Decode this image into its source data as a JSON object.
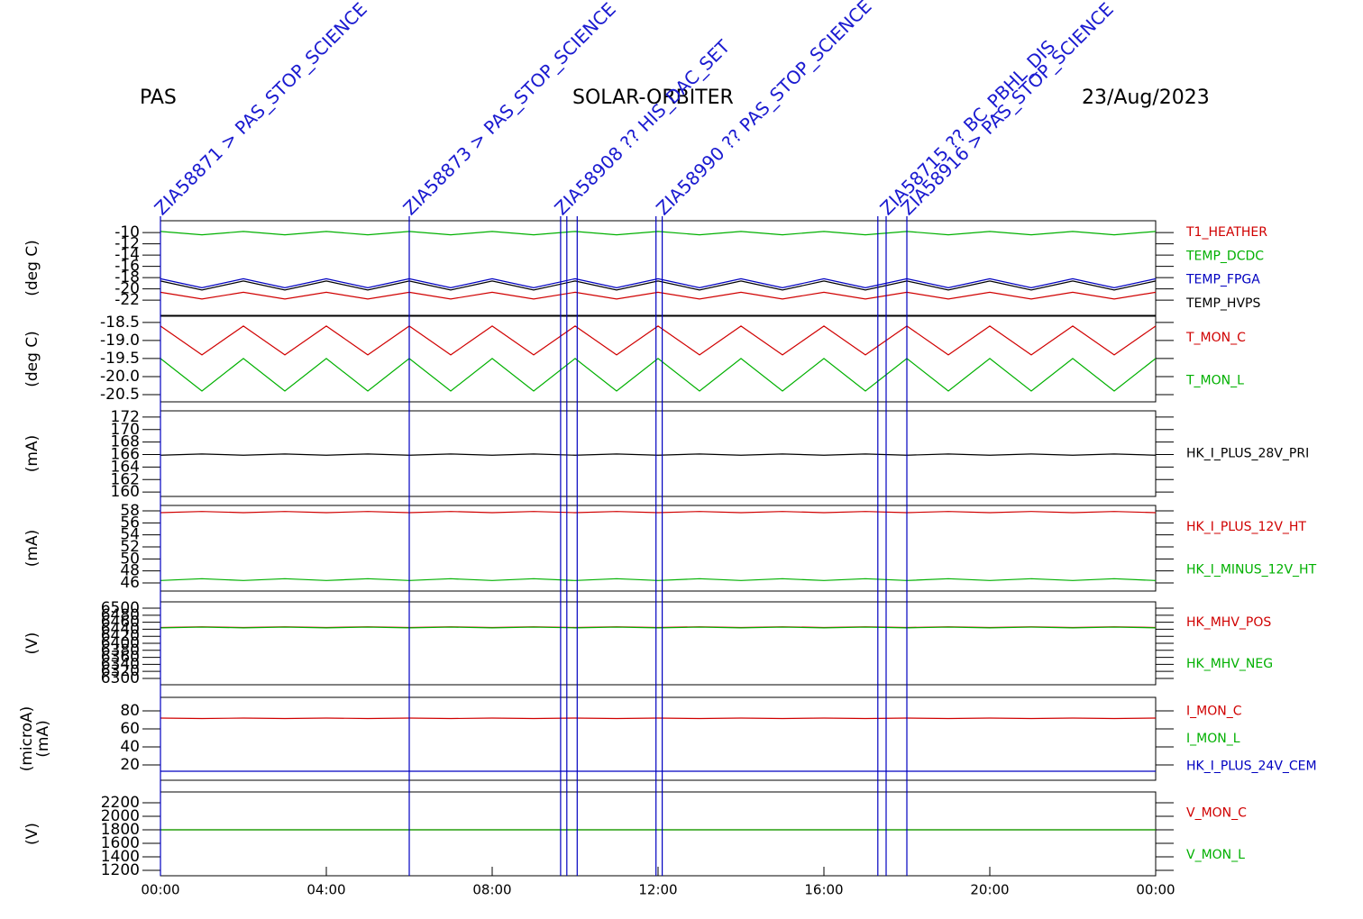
{
  "header": {
    "left": "PAS",
    "center": "SOLAR-ORBITER",
    "right": "23/Aug/2023"
  },
  "events": [
    {
      "x": 0,
      "label": "ZIA58871 > PAS_STOP_SCIENCE"
    },
    {
      "x": 6,
      "label": "ZIA58873 > PAS_STOP_SCIENCE"
    },
    {
      "x": 9.65,
      "label": "ZIA58908 ?? HIS_DAC_SET"
    },
    {
      "x": 9.8,
      "label": null
    },
    {
      "x": 10.05,
      "label": null
    },
    {
      "x": 11.95,
      "label": null
    },
    {
      "x": 12.1,
      "label": "ZIA58990 ?? PAS_STOP_SCIENCE"
    },
    {
      "x": 17.3,
      "label": null
    },
    {
      "x": 17.5,
      "label": "ZIA58715 ?? BC_PBHL_DIS"
    },
    {
      "x": 18,
      "label": "ZIA58916 > PAS_STOP_SCIENCE"
    }
  ],
  "chart_data": [
    {
      "type": "line",
      "ylabel": "(deg C)",
      "xlim": [
        0,
        24
      ],
      "ylim": [
        -24.7,
        -7.9
      ],
      "yticks": [
        -10,
        -12,
        -14,
        -16,
        -18,
        -20,
        -22
      ],
      "x": [
        0,
        1,
        2,
        3,
        4,
        5,
        6,
        7,
        8,
        9,
        10,
        11,
        12,
        13,
        14,
        15,
        16,
        17,
        18,
        19,
        20,
        21,
        22,
        23,
        24
      ],
      "series": [
        {
          "name": "T1_HEATHER",
          "color": "#d00000",
          "values": [
            -20.6,
            -21.8,
            -20.6,
            -21.8,
            -20.6,
            -21.8,
            -20.6,
            -21.8,
            -20.6,
            -21.8,
            -20.6,
            -21.8,
            -20.6,
            -21.8,
            -20.6,
            -21.8,
            -20.6,
            -21.8,
            -20.6,
            -21.8,
            -20.6,
            -21.8,
            -20.6,
            -21.8,
            -20.6
          ]
        },
        {
          "name": "TEMP_DCDC",
          "color": "#00b000",
          "values": [
            -9.8,
            -10.4,
            -9.8,
            -10.4,
            -9.8,
            -10.4,
            -9.8,
            -10.4,
            -9.8,
            -10.4,
            -9.8,
            -10.4,
            -9.8,
            -10.4,
            -9.8,
            -10.4,
            -9.8,
            -10.4,
            -9.8,
            -10.4,
            -9.8,
            -10.4,
            -9.8,
            -10.4,
            -9.8
          ]
        },
        {
          "name": "TEMP_FPGA",
          "color": "#0000c0",
          "values": [
            -18.2,
            -19.8,
            -18.2,
            -19.8,
            -18.2,
            -19.8,
            -18.2,
            -19.8,
            -18.2,
            -19.8,
            -18.2,
            -19.8,
            -18.2,
            -19.8,
            -18.2,
            -19.8,
            -18.2,
            -19.8,
            -18.2,
            -19.8,
            -18.2,
            -19.8,
            -18.2,
            -19.8,
            -18.2
          ]
        },
        {
          "name": "TEMP_HVPS",
          "color": "#000000",
          "values": [
            -18.6,
            -20.2,
            -18.6,
            -20.2,
            -18.6,
            -20.2,
            -18.6,
            -20.2,
            -18.6,
            -20.2,
            -18.6,
            -20.2,
            -18.6,
            -20.2,
            -18.6,
            -20.2,
            -18.6,
            -20.2,
            -18.6,
            -20.2,
            -18.6,
            -20.2,
            -18.6,
            -20.2,
            -18.6
          ]
        }
      ]
    },
    {
      "type": "line",
      "ylabel": "(deg C)",
      "xlim": [
        0,
        24
      ],
      "ylim": [
        -20.7,
        -18.33
      ],
      "yticks": [
        -18.5,
        {
          "value": -19,
          "label": "-19.0"
        },
        -19.5,
        {
          "value": -20,
          "label": "-20.0"
        },
        -20.5
      ],
      "x": [
        0,
        1,
        2,
        3,
        4,
        5,
        6,
        7,
        8,
        9,
        10,
        11,
        12,
        13,
        14,
        15,
        16,
        17,
        18,
        19,
        20,
        21,
        22,
        23,
        24
      ],
      "series": [
        {
          "name": "T_MON_C",
          "color": "#d00000",
          "values": [
            -18.6,
            -19.4,
            -18.6,
            -19.4,
            -18.6,
            -19.4,
            -18.6,
            -19.4,
            -18.6,
            -19.4,
            -18.6,
            -19.4,
            -18.6,
            -19.4,
            -18.6,
            -19.4,
            -18.6,
            -19.4,
            -18.6,
            -19.4,
            -18.6,
            -19.4,
            -18.6,
            -19.4,
            -18.6
          ]
        },
        {
          "name": "T_MON_L",
          "color": "#00b000",
          "values": [
            -19.5,
            -20.4,
            -19.5,
            -20.4,
            -19.5,
            -20.4,
            -19.5,
            -20.4,
            -19.5,
            -20.4,
            -19.5,
            -20.4,
            -19.5,
            -20.4,
            -19.5,
            -20.4,
            -19.5,
            -20.4,
            -19.5,
            -20.4,
            -19.5,
            -20.4,
            -19.5,
            -20.4,
            -19.5
          ]
        }
      ]
    },
    {
      "type": "line",
      "ylabel": "(mA)",
      "xlim": [
        0,
        24
      ],
      "ylim": [
        159.3,
        173
      ],
      "yticks": [
        172,
        170,
        168,
        166,
        164,
        162,
        160
      ],
      "x": [
        0,
        1,
        2,
        3,
        4,
        5,
        6,
        7,
        8,
        9,
        10,
        11,
        12,
        13,
        14,
        15,
        16,
        17,
        18,
        19,
        20,
        21,
        22,
        23,
        24
      ],
      "series": [
        {
          "name": "HK_I_PLUS_28V_PRI",
          "color": "#000000",
          "values": [
            165.9,
            166.1,
            165.9,
            166.1,
            165.9,
            166.1,
            165.9,
            166.1,
            165.9,
            166.1,
            165.9,
            166.1,
            165.9,
            166.1,
            165.9,
            166.1,
            165.9,
            166.1,
            165.9,
            166.1,
            165.9,
            166.1,
            165.9,
            166.1,
            165.9
          ]
        }
      ]
    },
    {
      "type": "line",
      "ylabel": "(mA)",
      "xlim": [
        0,
        24
      ],
      "ylim": [
        44.65,
        58.9
      ],
      "yticks": [
        58,
        56,
        54,
        52,
        50,
        48,
        46
      ],
      "x": [
        0,
        1,
        2,
        3,
        4,
        5,
        6,
        7,
        8,
        9,
        10,
        11,
        12,
        13,
        14,
        15,
        16,
        17,
        18,
        19,
        20,
        21,
        22,
        23,
        24
      ],
      "series": [
        {
          "name": "HK_I_PLUS_12V_HT",
          "color": "#d00000",
          "values": [
            57.7,
            57.9,
            57.7,
            57.9,
            57.7,
            57.9,
            57.7,
            57.9,
            57.7,
            57.9,
            57.7,
            57.9,
            57.7,
            57.9,
            57.7,
            57.9,
            57.7,
            57.9,
            57.7,
            57.9,
            57.7,
            57.9,
            57.7,
            57.9,
            57.7
          ]
        },
        {
          "name": "HK_I_MINUS_12V_HT",
          "color": "#00b000",
          "values": [
            46.4,
            46.7,
            46.4,
            46.7,
            46.4,
            46.7,
            46.4,
            46.7,
            46.4,
            46.7,
            46.4,
            46.7,
            46.4,
            46.7,
            46.4,
            46.7,
            46.4,
            46.7,
            46.4,
            46.7,
            46.4,
            46.7,
            46.4,
            46.7,
            46.4
          ]
        }
      ]
    },
    {
      "type": "line",
      "ylabel": "(V)",
      "xlim": [
        0,
        24
      ],
      "ylim": [
        6282,
        6518
      ],
      "yticks": [
        6500,
        6480,
        6460,
        6440,
        6420,
        6400,
        6380,
        6360,
        6340,
        6320,
        6300
      ],
      "x": [
        0,
        1,
        2,
        3,
        4,
        5,
        6,
        7,
        8,
        9,
        10,
        11,
        12,
        13,
        14,
        15,
        16,
        17,
        18,
        19,
        20,
        21,
        22,
        23,
        24
      ],
      "series": [
        {
          "name": "HK_MHV_POS",
          "color": "#d00000",
          "values": [
            6445,
            6447,
            6445,
            6447,
            6445,
            6447,
            6445,
            6447,
            6445,
            6447,
            6445,
            6447,
            6445,
            6447,
            6445,
            6447,
            6445,
            6447,
            6445,
            6447,
            6445,
            6447,
            6445,
            6447,
            6445
          ]
        },
        {
          "name": "HK_MHV_NEG",
          "color": "#00b000",
          "values": [
            6444,
            6446,
            6444,
            6446,
            6444,
            6446,
            6444,
            6446,
            6444,
            6446,
            6444,
            6446,
            6444,
            6446,
            6444,
            6446,
            6444,
            6446,
            6444,
            6446,
            6444,
            6446,
            6444,
            6446,
            6444
          ]
        }
      ]
    },
    {
      "type": "line",
      "ylabel": [
        "(microA)",
        "(mA)"
      ],
      "xlim": [
        0,
        24
      ],
      "ylim": [
        3,
        95
      ],
      "yticks": [
        80,
        60,
        40,
        20
      ],
      "x": [
        0,
        1,
        2,
        3,
        4,
        5,
        6,
        7,
        8,
        9,
        10,
        11,
        12,
        13,
        14,
        15,
        16,
        17,
        18,
        19,
        20,
        21,
        22,
        23,
        24
      ],
      "series": [
        {
          "name": "I_MON_C",
          "color": "#d00000",
          "values": [
            72,
            71.5,
            72,
            71.5,
            72,
            71.5,
            72,
            71.5,
            72,
            71.5,
            72,
            71.5,
            72,
            71.5,
            72,
            71.5,
            72,
            71.5,
            72,
            71.5,
            72,
            71.5,
            72,
            71.5,
            72
          ]
        },
        {
          "name": "I_MON_L",
          "color": "#00b000",
          "values": [
            null,
            null,
            null,
            null,
            null,
            null,
            null,
            null,
            null,
            null,
            null,
            null,
            null,
            null,
            null,
            null,
            null,
            null,
            null,
            null,
            null,
            null,
            null,
            null,
            null
          ]
        },
        {
          "name": "HK_I_PLUS_24V_CEM",
          "color": "#0000c0",
          "values": [
            13,
            13,
            13,
            13,
            13,
            13,
            13,
            13,
            13,
            13,
            13,
            13,
            13,
            13,
            13,
            13,
            13,
            13,
            13,
            13,
            13,
            13,
            13,
            13,
            13
          ]
        }
      ]
    },
    {
      "type": "line",
      "ylabel": "(V)",
      "xlim": [
        0,
        24
      ],
      "ylim": [
        1120,
        2360
      ],
      "yticks": [
        2200,
        2000,
        1800,
        1600,
        1400,
        1200
      ],
      "xticks": [
        {
          "value": 0,
          "label": "00:00"
        },
        {
          "value": 4,
          "label": "04:00"
        },
        {
          "value": 8,
          "label": "08:00"
        },
        {
          "value": 12,
          "label": "12:00"
        },
        {
          "value": 16,
          "label": "16:00"
        },
        {
          "value": 20,
          "label": "20:00"
        },
        {
          "value": 24,
          "label": "00:00"
        }
      ],
      "x": [
        0,
        1,
        2,
        3,
        4,
        5,
        6,
        7,
        8,
        9,
        10,
        11,
        12,
        13,
        14,
        15,
        16,
        17,
        18,
        19,
        20,
        21,
        22,
        23,
        24
      ],
      "series": [
        {
          "name": "V_MON_C",
          "color": "#d00000",
          "values": [
            1800,
            1800,
            1800,
            1800,
            1800,
            1800,
            1800,
            1800,
            1800,
            1800,
            1800,
            1800,
            1800,
            1800,
            1800,
            1800,
            1800,
            1800,
            1800,
            1800,
            1800,
            1800,
            1800,
            1800,
            1800
          ]
        },
        {
          "name": "V_MON_L",
          "color": "#00b000",
          "values": [
            1800,
            1800,
            1800,
            1800,
            1800,
            1800,
            1800,
            1800,
            1800,
            1800,
            1800,
            1800,
            1800,
            1800,
            1800,
            1800,
            1800,
            1800,
            1800,
            1800,
            1800,
            1800,
            1800,
            1800,
            1800
          ]
        }
      ]
    }
  ]
}
